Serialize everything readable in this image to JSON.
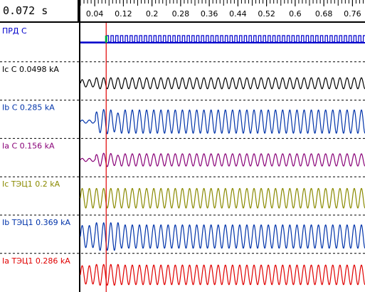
{
  "readout": {
    "time_value": "0.072",
    "time_unit": "s"
  },
  "colors": {
    "cursor": "#e00000",
    "grid": "#000000",
    "panel_border": "#000000"
  },
  "chart_data": {
    "type": "line",
    "x_axis": {
      "ticks": [
        "0.04",
        "0.12",
        "0.2",
        "0.28",
        "0.36",
        "0.44",
        "0.52",
        "0.6",
        "0.68",
        "0.76"
      ],
      "tick_values": [
        0.04,
        0.12,
        0.2,
        0.28,
        0.36,
        0.44,
        0.52,
        0.6,
        0.68,
        0.76
      ],
      "xlim": [
        0.0,
        0.795
      ]
    },
    "cursor_x": 0.072,
    "fault_start": 0.072,
    "series": [
      {
        "name": "ПРД С",
        "color": "#0000cc",
        "kind": "digital",
        "pulse_period": 0.0133,
        "high_from": 0.072
      },
      {
        "name": "Ic С",
        "value": "0.0498 kA",
        "color": "#000000",
        "kind": "analog",
        "amp": 0.12,
        "fault_amp": 0.18,
        "freq": 50
      },
      {
        "name": "Ib С",
        "value": "0.285 kA",
        "color": "#0033aa",
        "kind": "analog",
        "amp": 0.05,
        "fault_amp": 0.4,
        "post_amp": 0.38,
        "transient": true,
        "freq": 50
      },
      {
        "name": "Ia С",
        "value": "0.156 kA",
        "color": "#880077",
        "kind": "analog",
        "amp": 0.05,
        "fault_amp": 0.22,
        "post_amp": 0.2,
        "transient": true,
        "freq": 50
      },
      {
        "name": "Ic ТЭЦ1",
        "value": "0.2 kA",
        "color": "#8a8a00",
        "kind": "analog",
        "amp": 0.32,
        "fault_amp": 0.32,
        "post_amp": 0.32,
        "freq": 50
      },
      {
        "name": "Ib ТЭЦ1",
        "value": "0.369 kA",
        "color": "#0033aa",
        "kind": "analog",
        "amp": 0.36,
        "fault_amp": 0.45,
        "post_amp": 0.38,
        "freq": 50
      },
      {
        "name": "Ia ТЭЦ1",
        "value": "0.286 kA",
        "color": "#e00000",
        "kind": "analog",
        "amp": 0.3,
        "fault_amp": 0.34,
        "post_amp": 0.32,
        "freq": 50
      }
    ]
  }
}
